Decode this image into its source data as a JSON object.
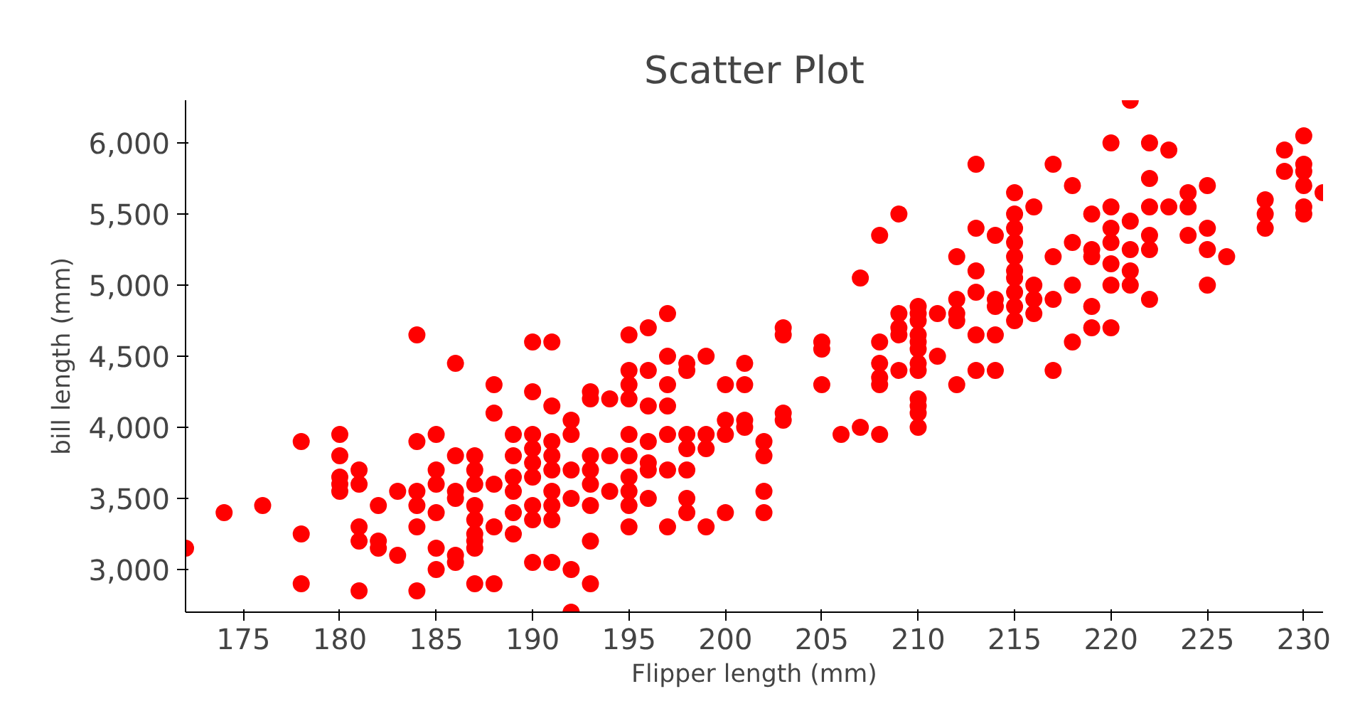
{
  "chart_data": {
    "type": "scatter",
    "title": "Scatter Plot",
    "xlabel": "Flipper length (mm)",
    "ylabel": "bill length (mm)",
    "marker": "circle",
    "grid": false,
    "xlim": [
      172,
      231
    ],
    "ylim": [
      2700,
      6300
    ],
    "xticks": [
      175,
      180,
      185,
      190,
      195,
      200,
      205,
      210,
      215,
      220,
      225,
      230
    ],
    "yticks": [
      {
        "value": 3000,
        "label": "3,000"
      },
      {
        "value": 3500,
        "label": "3,500"
      },
      {
        "value": 4000,
        "label": "4,000"
      },
      {
        "value": 4500,
        "label": "4,500"
      },
      {
        "value": 5000,
        "label": "5,000"
      },
      {
        "value": 5500,
        "label": "5,500"
      },
      {
        "value": 6000,
        "label": "6,000"
      }
    ],
    "series": [
      {
        "color": "#ff0000",
        "x": [
          172,
          174,
          176,
          178,
          178,
          178,
          180,
          180,
          180,
          180,
          180,
          181,
          181,
          181,
          181,
          181,
          182,
          182,
          182,
          183,
          183,
          184,
          184,
          184,
          184,
          184,
          184,
          185,
          185,
          185,
          185,
          185,
          185,
          186,
          186,
          186,
          186,
          186,
          186,
          187,
          187,
          187,
          187,
          187,
          187,
          187,
          187,
          187,
          188,
          188,
          188,
          188,
          188,
          189,
          189,
          189,
          189,
          189,
          189,
          190,
          190,
          190,
          190,
          190,
          190,
          190,
          190,
          190,
          191,
          191,
          191,
          191,
          191,
          191,
          191,
          191,
          191,
          192,
          192,
          192,
          192,
          192,
          192,
          193,
          193,
          193,
          193,
          193,
          193,
          193,
          193,
          194,
          194,
          194,
          195,
          195,
          195,
          195,
          195,
          195,
          195,
          195,
          195,
          195,
          196,
          196,
          196,
          196,
          196,
          196,
          196,
          197,
          197,
          197,
          197,
          197,
          197,
          197,
          198,
          198,
          198,
          198,
          198,
          198,
          198,
          199,
          199,
          199,
          199,
          200,
          200,
          200,
          200,
          201,
          201,
          201,
          201,
          202,
          202,
          202,
          202,
          203,
          203,
          203,
          203,
          205,
          205,
          205,
          206,
          207,
          207,
          208,
          208,
          208,
          208,
          208,
          208,
          209,
          209,
          209,
          209,
          209,
          210,
          210,
          210,
          210,
          210,
          210,
          210,
          210,
          210,
          210,
          210,
          210,
          211,
          211,
          212,
          212,
          212,
          212,
          212,
          213,
          213,
          213,
          213,
          213,
          213,
          214,
          214,
          214,
          214,
          214,
          215,
          215,
          215,
          215,
          215,
          215,
          215,
          215,
          215,
          215,
          216,
          216,
          216,
          216,
          217,
          217,
          217,
          217,
          218,
          218,
          218,
          218,
          219,
          219,
          219,
          219,
          219,
          220,
          220,
          220,
          220,
          220,
          220,
          220,
          221,
          221,
          221,
          221,
          221,
          222,
          222,
          222,
          222,
          222,
          222,
          223,
          223,
          224,
          224,
          224,
          225,
          225,
          225,
          225,
          226,
          228,
          228,
          228,
          229,
          229,
          230,
          230,
          230,
          230,
          230,
          230,
          231
        ],
        "values": [
          3150,
          3400,
          3450,
          3900,
          3250,
          2900,
          3950,
          3800,
          3650,
          3600,
          3550,
          3700,
          3600,
          3300,
          3200,
          2850,
          3450,
          3200,
          3150,
          3550,
          3100,
          4650,
          3900,
          3550,
          3450,
          3300,
          2850,
          3950,
          3700,
          3600,
          3400,
          3150,
          3000,
          4450,
          3800,
          3550,
          3500,
          3100,
          3050,
          3800,
          3700,
          3600,
          3450,
          3350,
          3250,
          3200,
          3150,
          2900,
          4300,
          4100,
          3600,
          3300,
          2900,
          3950,
          3800,
          3650,
          3550,
          3400,
          3250,
          4600,
          4250,
          3950,
          3850,
          3750,
          3650,
          3450,
          3350,
          3050,
          4600,
          4150,
          3900,
          3800,
          3700,
          3550,
          3450,
          3350,
          3050,
          4050,
          3950,
          3700,
          3500,
          3000,
          2700,
          4250,
          4200,
          3800,
          3700,
          3600,
          3450,
          3200,
          2900,
          4200,
          3800,
          3550,
          4650,
          4400,
          4300,
          4200,
          3950,
          3800,
          3650,
          3550,
          3450,
          3300,
          4700,
          4400,
          4150,
          3900,
          3750,
          3700,
          3500,
          4800,
          4500,
          4300,
          4150,
          3950,
          3700,
          3300,
          4450,
          4400,
          3950,
          3850,
          3700,
          3500,
          3400,
          4500,
          3950,
          3850,
          3300,
          4300,
          4050,
          3950,
          3400,
          4450,
          4300,
          4050,
          4000,
          3900,
          3800,
          3550,
          3400,
          4700,
          4650,
          4100,
          4050,
          4600,
          4550,
          4300,
          3950,
          5050,
          4000,
          5350,
          4600,
          4450,
          4350,
          4300,
          3950,
          5500,
          4800,
          4700,
          4650,
          4400,
          4850,
          4800,
          4750,
          4650,
          4600,
          4550,
          4450,
          4400,
          4200,
          4150,
          4100,
          4000,
          4800,
          4500,
          5200,
          4900,
          4800,
          4750,
          4300,
          5850,
          5400,
          5100,
          4950,
          4650,
          4400,
          5350,
          4900,
          4850,
          4650,
          4400,
          5650,
          5500,
          5400,
          5300,
          5200,
          5100,
          5050,
          4950,
          4850,
          4750,
          5550,
          5000,
          4900,
          4800,
          5850,
          5200,
          4900,
          4400,
          5700,
          5300,
          5000,
          4600,
          5500,
          5250,
          5200,
          4850,
          4700,
          6000,
          5550,
          5400,
          5300,
          5150,
          5000,
          4700,
          6300,
          5450,
          5250,
          5100,
          5000,
          6000,
          5750,
          5550,
          5350,
          5250,
          4900,
          5950,
          5550,
          5650,
          5550,
          5350,
          5700,
          5400,
          5250,
          5000,
          5200,
          5600,
          5500,
          5400,
          5950,
          5800,
          6050,
          5850,
          5800,
          5700,
          5550,
          5500,
          5650
        ]
      }
    ]
  }
}
